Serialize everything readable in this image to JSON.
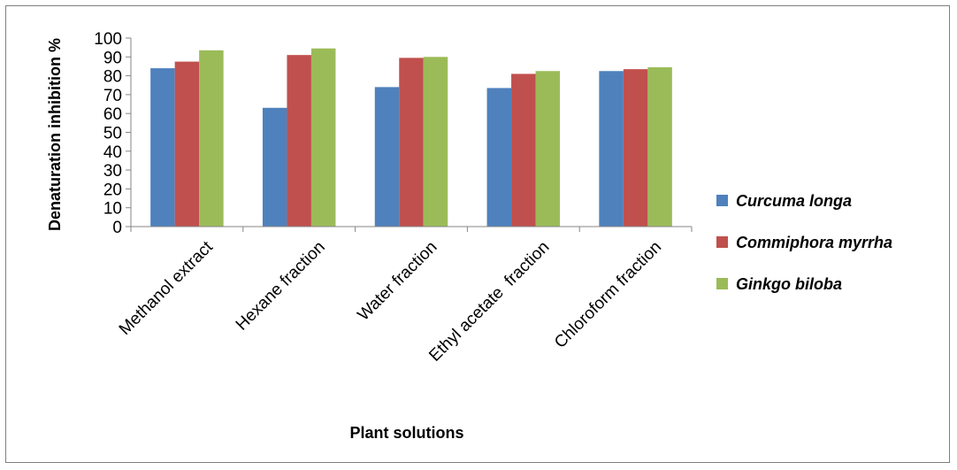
{
  "chart_data": {
    "type": "bar",
    "title": "",
    "xlabel": "Plant solutions",
    "ylabel": "Denaturation inhibition %",
    "ylim": [
      0,
      100
    ],
    "yticks": [
      0,
      10,
      20,
      30,
      40,
      50,
      60,
      70,
      80,
      90,
      100
    ],
    "grid": false,
    "legend_position": "right",
    "categories": [
      "Methanol extract",
      "Hexane fraction",
      "Water fraction",
      "Ethyl acetate  fraction",
      "Chloroform fraction"
    ],
    "series": [
      {
        "name": "Curcuma longa",
        "color": "#4f81bd",
        "values": [
          84,
          63,
          74,
          73.5,
          82.5
        ]
      },
      {
        "name": "Commiphora myrrha",
        "color": "#c0504d",
        "values": [
          87.5,
          91,
          89.5,
          81,
          83.5
        ]
      },
      {
        "name": "Ginkgo biloba",
        "color": "#9bbb59",
        "values": [
          93.5,
          94.5,
          90,
          82.5,
          84.5
        ]
      }
    ]
  }
}
